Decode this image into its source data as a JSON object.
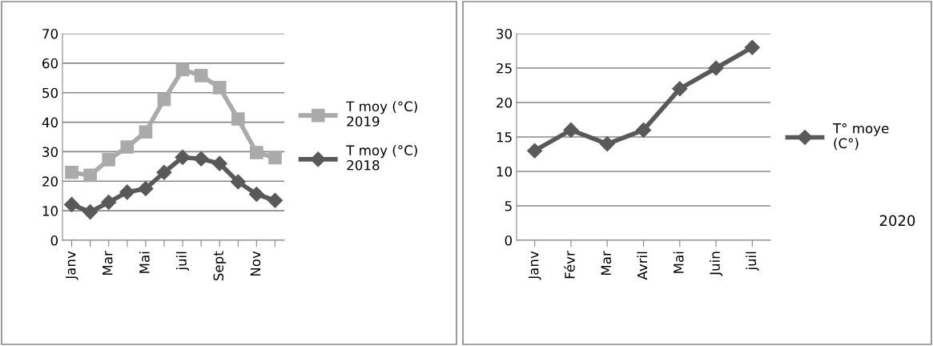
{
  "chart_data": [
    {
      "type": "line",
      "categories": [
        "Janv",
        null,
        "Mar",
        null,
        "Mai",
        null,
        "juil",
        null,
        "Sept",
        null,
        "Nov",
        null
      ],
      "ylim": [
        0,
        70
      ],
      "yticks": [
        0,
        10,
        20,
        30,
        40,
        50,
        60,
        70
      ],
      "grid": "y",
      "legend": "right",
      "series": [
        {
          "name": "T moy (°C) 2019",
          "color": "#aaaaaa",
          "marker": "square",
          "values": [
            23,
            22,
            27.3,
            31.6,
            36.7,
            47.7,
            57.8,
            55.8,
            51.7,
            41.1,
            29.7,
            28
          ]
        },
        {
          "name": "T moy (°C) 2018",
          "color": "#595959",
          "marker": "diamond",
          "values": [
            12.1,
            9.6,
            12.9,
            16.3,
            17.5,
            23,
            28.1,
            27.6,
            26,
            19.8,
            15.6,
            13.5
          ]
        }
      ]
    },
    {
      "type": "line",
      "categories": [
        "Janv",
        "Févr",
        "Mar",
        "Avril",
        "Mai",
        "Juin",
        "juil"
      ],
      "ylim": [
        0,
        30
      ],
      "yticks": [
        0,
        5,
        10,
        15,
        20,
        25,
        30
      ],
      "grid": "y",
      "legend": "right",
      "annotations": [
        "2020"
      ],
      "series": [
        {
          "name": "T° moye (C°)",
          "color": "#595959",
          "marker": "diamond",
          "values": [
            13,
            16,
            14,
            16,
            22,
            25,
            28
          ]
        }
      ]
    }
  ]
}
